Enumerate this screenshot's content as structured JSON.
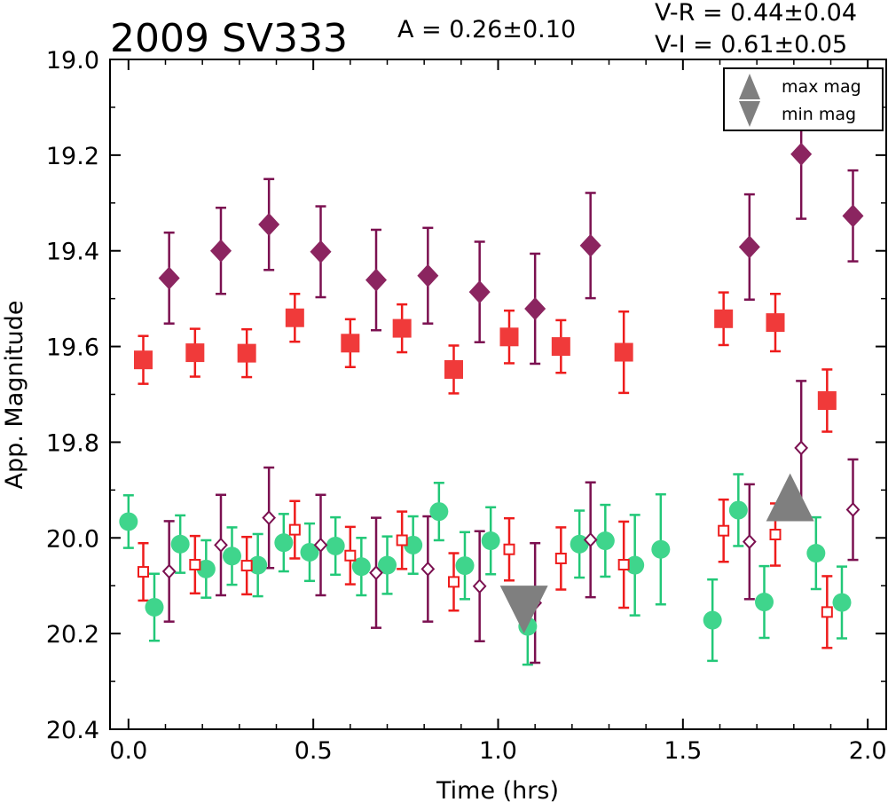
{
  "header": {
    "title": "2009 SV333",
    "amplitude": "A  = 0.26±0.10",
    "color_vr": "V-R = 0.44±0.04",
    "color_vi": "V-I  = 0.61±0.05"
  },
  "chart_data": {
    "type": "scatter",
    "title": "2009 SV333",
    "xlabel": "Time (hrs)",
    "ylabel": "App. Magnitude",
    "xlim": [
      -0.05,
      2.05
    ],
    "ylim": [
      19.0,
      20.4
    ],
    "y_inverted": true,
    "grid": false,
    "x_ticks": [
      0.0,
      0.5,
      1.0,
      1.5,
      2.0
    ],
    "x_tick_labels": [
      "0.0",
      "0.5",
      "1.0",
      "1.5",
      "2.0"
    ],
    "y_ticks": [
      19.0,
      19.2,
      19.4,
      19.6,
      19.8,
      20.0,
      20.2,
      20.4
    ],
    "y_tick_labels": [
      "19.0",
      "19.2",
      "19.4",
      "19.6",
      "19.8",
      "20.0",
      "20.2",
      "20.4"
    ],
    "legend": {
      "location": "top-right",
      "entries": [
        "max mag",
        "min mag"
      ]
    },
    "series": [
      {
        "marker": "diamond-filled",
        "color": "#8b2560",
        "errcolor": "#7b1050",
        "points": [
          {
            "x": 0.11,
            "y": 19.457,
            "err": 0.095
          },
          {
            "x": 0.25,
            "y": 19.4,
            "err": 0.09
          },
          {
            "x": 0.38,
            "y": 19.345,
            "err": 0.095
          },
          {
            "x": 0.52,
            "y": 19.402,
            "err": 0.095
          },
          {
            "x": 0.67,
            "y": 19.461,
            "err": 0.105
          },
          {
            "x": 0.81,
            "y": 19.452,
            "err": 0.1
          },
          {
            "x": 0.95,
            "y": 19.486,
            "err": 0.105
          },
          {
            "x": 1.1,
            "y": 19.521,
            "err": 0.115
          },
          {
            "x": 1.25,
            "y": 19.389,
            "err": 0.11
          },
          {
            "x": 1.68,
            "y": 19.392,
            "err": 0.11
          },
          {
            "x": 1.82,
            "y": 19.198,
            "err": 0.135
          },
          {
            "x": 1.96,
            "y": 19.327,
            "err": 0.095
          }
        ]
      },
      {
        "marker": "square-filled",
        "color": "#f03a3a",
        "errcolor": "#ee1c1c",
        "points": [
          {
            "x": 0.04,
            "y": 19.628,
            "err": 0.05
          },
          {
            "x": 0.18,
            "y": 19.613,
            "err": 0.05
          },
          {
            "x": 0.32,
            "y": 19.614,
            "err": 0.05
          },
          {
            "x": 0.45,
            "y": 19.54,
            "err": 0.05
          },
          {
            "x": 0.6,
            "y": 19.593,
            "err": 0.05
          },
          {
            "x": 0.74,
            "y": 19.562,
            "err": 0.05
          },
          {
            "x": 0.88,
            "y": 19.648,
            "err": 0.05
          },
          {
            "x": 1.03,
            "y": 19.58,
            "err": 0.055
          },
          {
            "x": 1.17,
            "y": 19.6,
            "err": 0.055
          },
          {
            "x": 1.34,
            "y": 19.612,
            "err": 0.085
          },
          {
            "x": 1.61,
            "y": 19.542,
            "err": 0.055
          },
          {
            "x": 1.75,
            "y": 19.55,
            "err": 0.06
          },
          {
            "x": 1.89,
            "y": 19.713,
            "err": 0.065
          }
        ]
      },
      {
        "marker": "circle-filled",
        "color": "#3fd58c",
        "errcolor": "#22c878",
        "points": [
          {
            "x": 0.0,
            "y": 19.966,
            "err": 0.055
          },
          {
            "x": 0.07,
            "y": 20.145,
            "err": 0.07
          },
          {
            "x": 0.14,
            "y": 20.013,
            "err": 0.06
          },
          {
            "x": 0.21,
            "y": 20.065,
            "err": 0.06
          },
          {
            "x": 0.28,
            "y": 20.038,
            "err": 0.06
          },
          {
            "x": 0.35,
            "y": 20.057,
            "err": 0.065
          },
          {
            "x": 0.42,
            "y": 20.01,
            "err": 0.06
          },
          {
            "x": 0.49,
            "y": 20.03,
            "err": 0.06
          },
          {
            "x": 0.56,
            "y": 20.017,
            "err": 0.06
          },
          {
            "x": 0.63,
            "y": 20.06,
            "err": 0.06
          },
          {
            "x": 0.7,
            "y": 20.057,
            "err": 0.06
          },
          {
            "x": 0.77,
            "y": 20.015,
            "err": 0.06
          },
          {
            "x": 0.84,
            "y": 19.945,
            "err": 0.06
          },
          {
            "x": 0.91,
            "y": 20.058,
            "err": 0.07
          },
          {
            "x": 0.98,
            "y": 20.006,
            "err": 0.07
          },
          {
            "x": 1.08,
            "y": 20.185,
            "err": 0.08
          },
          {
            "x": 1.22,
            "y": 20.013,
            "err": 0.07
          },
          {
            "x": 1.29,
            "y": 20.006,
            "err": 0.075
          },
          {
            "x": 1.37,
            "y": 20.057,
            "err": 0.105
          },
          {
            "x": 1.44,
            "y": 20.024,
            "err": 0.115
          },
          {
            "x": 1.58,
            "y": 20.172,
            "err": 0.085
          },
          {
            "x": 1.65,
            "y": 19.942,
            "err": 0.075
          },
          {
            "x": 1.72,
            "y": 20.134,
            "err": 0.075
          },
          {
            "x": 1.86,
            "y": 20.032,
            "err": 0.075
          },
          {
            "x": 1.93,
            "y": 20.135,
            "err": 0.075
          }
        ]
      },
      {
        "marker": "square-open",
        "color": "#ee1c1c",
        "errcolor": "#ee1c1c",
        "points": [
          {
            "x": 0.04,
            "y": 20.071,
            "err": 0.06
          },
          {
            "x": 0.18,
            "y": 20.056,
            "err": 0.06
          },
          {
            "x": 0.32,
            "y": 20.058,
            "err": 0.06
          },
          {
            "x": 0.45,
            "y": 19.983,
            "err": 0.06
          },
          {
            "x": 0.6,
            "y": 20.037,
            "err": 0.06
          },
          {
            "x": 0.74,
            "y": 20.005,
            "err": 0.06
          },
          {
            "x": 0.88,
            "y": 20.092,
            "err": 0.06
          },
          {
            "x": 1.03,
            "y": 20.024,
            "err": 0.065
          },
          {
            "x": 1.17,
            "y": 20.043,
            "err": 0.065
          },
          {
            "x": 1.34,
            "y": 20.056,
            "err": 0.09
          },
          {
            "x": 1.61,
            "y": 19.985,
            "err": 0.065
          },
          {
            "x": 1.75,
            "y": 19.993,
            "err": 0.065
          },
          {
            "x": 1.89,
            "y": 20.155,
            "err": 0.075
          }
        ]
      },
      {
        "marker": "diamond-open",
        "color": "#7b1050",
        "errcolor": "#7b1050",
        "points": [
          {
            "x": 0.11,
            "y": 20.07,
            "err": 0.105
          },
          {
            "x": 0.25,
            "y": 20.015,
            "err": 0.105
          },
          {
            "x": 0.38,
            "y": 19.958,
            "err": 0.105
          },
          {
            "x": 0.52,
            "y": 20.015,
            "err": 0.105
          },
          {
            "x": 0.67,
            "y": 20.073,
            "err": 0.115
          },
          {
            "x": 0.81,
            "y": 20.065,
            "err": 0.11
          },
          {
            "x": 0.95,
            "y": 20.101,
            "err": 0.115
          },
          {
            "x": 1.1,
            "y": 20.136,
            "err": 0.125
          },
          {
            "x": 1.25,
            "y": 20.004,
            "err": 0.12
          },
          {
            "x": 1.68,
            "y": 20.008,
            "err": 0.12
          },
          {
            "x": 1.82,
            "y": 19.812,
            "err": 0.14
          },
          {
            "x": 1.96,
            "y": 19.941,
            "err": 0.105
          }
        ]
      }
    ],
    "extrema": {
      "color": "#7f7f7f",
      "max": {
        "x": 1.79,
        "y": 19.915
      },
      "min": {
        "x": 1.07,
        "y": 20.15
      }
    }
  }
}
